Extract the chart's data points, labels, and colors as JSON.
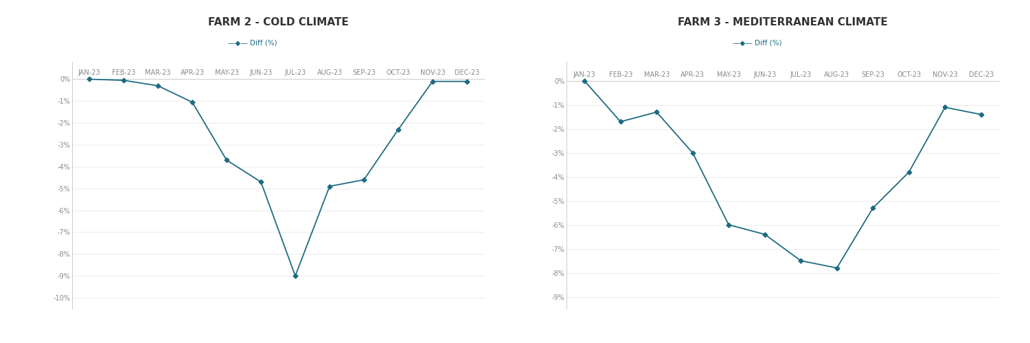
{
  "farm2": {
    "title": "FARM 2 - COLD CLIMATE",
    "months": [
      "JAN-23",
      "FEB-23",
      "MAR-23",
      "APR-23",
      "MAY-23",
      "JUN-23",
      "JUL-23",
      "AUG-23",
      "SEP-23",
      "OCT-23",
      "NOV-23",
      "DEC-23"
    ],
    "values": [
      0.0,
      -0.05,
      -0.3,
      -1.05,
      -3.7,
      -4.7,
      -9.0,
      -4.9,
      -4.6,
      -2.3,
      -0.1,
      -0.1
    ],
    "ylim": [
      -10.5,
      0.8
    ],
    "yticks": [
      0,
      -1,
      -2,
      -3,
      -4,
      -5,
      -6,
      -7,
      -8,
      -9,
      -10
    ]
  },
  "farm3": {
    "title": "FARM 3 - MEDITERRANEAN CLIMATE",
    "months": [
      "JAN-23",
      "FEB-23",
      "MAR-23",
      "APR-23",
      "MAY-23",
      "JUN-23",
      "JUL-23",
      "AUG-23",
      "SEP-23",
      "OCT-23",
      "NOV-23",
      "DEC-23"
    ],
    "values": [
      0.0,
      -1.7,
      -1.3,
      -3.0,
      -6.0,
      -6.4,
      -7.5,
      -7.8,
      -5.3,
      -3.8,
      -1.1,
      -1.4
    ],
    "ylim": [
      -9.5,
      0.8
    ],
    "yticks": [
      0,
      -1,
      -2,
      -3,
      -4,
      -5,
      -6,
      -7,
      -8,
      -9
    ]
  },
  "line_color": "#1d6b82",
  "marker": "D",
  "marker_size": 3.5,
  "line_width": 1.3,
  "legend_label": "Diff (%)",
  "title_fontsize": 11,
  "tick_fontsize": 7,
  "legend_fontsize": 7.5,
  "bg_color": "#ffffff",
  "plot_bg_color": "#ffffff",
  "panel_edge_color": "#cccccc",
  "grid_color": "#e8e8e8",
  "tick_color": "#888888",
  "title_color": "#333333"
}
